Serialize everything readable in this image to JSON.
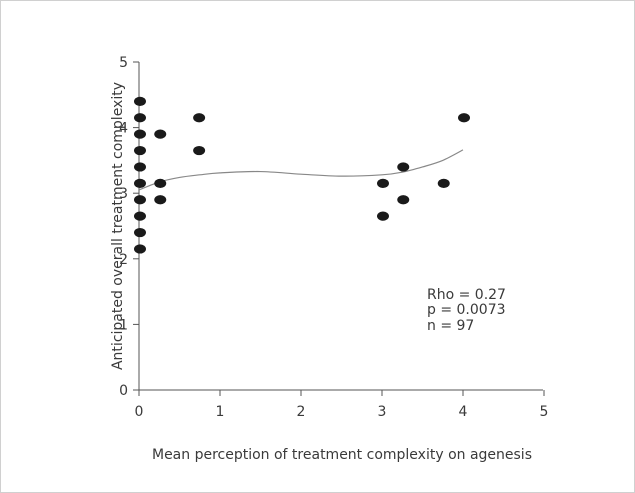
{
  "chart_data": {
    "type": "scatter",
    "xlabel": "Mean perception of treatment complexity on agenesis",
    "ylabel": "Anticipated overall treatment complexity",
    "xlim": [
      0,
      5
    ],
    "ylim": [
      0,
      5
    ],
    "x_ticks": [
      "0",
      "1",
      "2",
      "3",
      "4",
      "5"
    ],
    "y_ticks": [
      "0",
      "1",
      "2",
      "3",
      "4",
      "5"
    ],
    "points": [
      {
        "x": 0,
        "y": 4.4
      },
      {
        "x": 0,
        "y": 4.15
      },
      {
        "x": 0,
        "y": 3.9
      },
      {
        "x": 0,
        "y": 3.65
      },
      {
        "x": 0,
        "y": 3.4
      },
      {
        "x": 0,
        "y": 3.15
      },
      {
        "x": 0,
        "y": 2.9
      },
      {
        "x": 0,
        "y": 2.65
      },
      {
        "x": 0,
        "y": 2.4
      },
      {
        "x": 0,
        "y": 2.15
      },
      {
        "x": 0.25,
        "y": 3.9
      },
      {
        "x": 0.25,
        "y": 3.15
      },
      {
        "x": 0.25,
        "y": 2.9
      },
      {
        "x": 0.73,
        "y": 4.15
      },
      {
        "x": 0.73,
        "y": 3.65
      },
      {
        "x": 3.0,
        "y": 3.15
      },
      {
        "x": 3.0,
        "y": 2.65
      },
      {
        "x": 3.25,
        "y": 3.4
      },
      {
        "x": 3.25,
        "y": 2.9
      },
      {
        "x": 3.75,
        "y": 3.15
      },
      {
        "x": 4.0,
        "y": 4.15
      }
    ],
    "fit_curve": [
      {
        "x": 0,
        "y": 3.05
      },
      {
        "x": 0.25,
        "y": 3.17
      },
      {
        "x": 0.5,
        "y": 3.24
      },
      {
        "x": 0.75,
        "y": 3.28
      },
      {
        "x": 1.0,
        "y": 3.31
      },
      {
        "x": 1.5,
        "y": 3.33
      },
      {
        "x": 2.0,
        "y": 3.29
      },
      {
        "x": 2.5,
        "y": 3.26
      },
      {
        "x": 3.0,
        "y": 3.28
      },
      {
        "x": 3.25,
        "y": 3.32
      },
      {
        "x": 3.5,
        "y": 3.4
      },
      {
        "x": 3.75,
        "y": 3.5
      },
      {
        "x": 4.0,
        "y": 3.66
      }
    ],
    "annotations": [
      "Rho = 0.27",
      "p = 0.0073",
      "n = 97"
    ],
    "grid": false,
    "colors": {
      "points": "#1a1a1a",
      "curve": "#888888",
      "axis": "#555555",
      "frame": "#d0d0d0"
    }
  }
}
